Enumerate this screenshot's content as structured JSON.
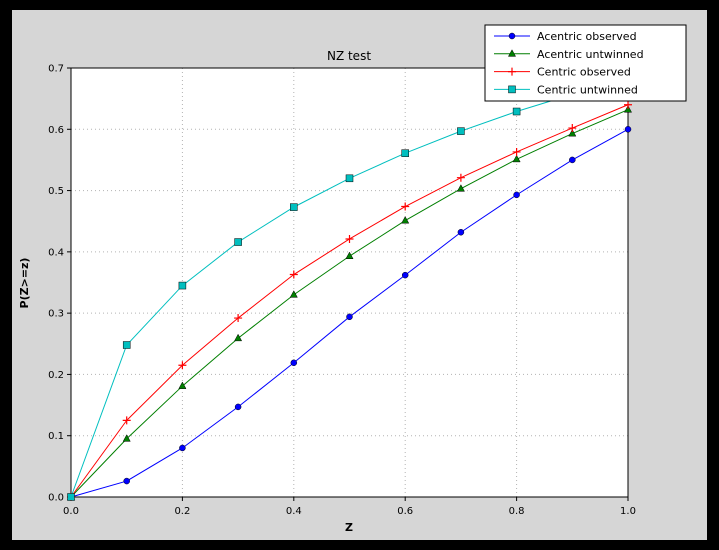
{
  "window": {
    "background": "#000000"
  },
  "figure": {
    "facecolor": "#d6d6d6",
    "plot_facecolor": "#ffffff",
    "border_color": "#000000",
    "grid_color": "#b3b3b3",
    "tick_color": "#000000",
    "text_color": "#000000"
  },
  "chart_data": {
    "type": "line",
    "title": "NZ test",
    "xlabel": "Z",
    "ylabel": "P(Z>=z)",
    "xlim": [
      0.0,
      1.0
    ],
    "ylim": [
      0.0,
      0.7
    ],
    "xticks": [
      0.0,
      0.2,
      0.4,
      0.6,
      0.8,
      1.0
    ],
    "yticks": [
      0.0,
      0.1,
      0.2,
      0.3,
      0.4,
      0.5,
      0.6,
      0.7
    ],
    "grid": true,
    "grid_style": "dotted",
    "legend": {
      "position": "upper right",
      "entries": [
        "Acentric observed",
        "Acentric untwinned",
        "Centric observed",
        "Centric untwinned"
      ]
    },
    "x": [
      0.0,
      0.1,
      0.2,
      0.3,
      0.4,
      0.5,
      0.6,
      0.7,
      0.8,
      0.9,
      1.0
    ],
    "series": [
      {
        "name": "Acentric observed",
        "color": "#0000ff",
        "marker": "circle",
        "values": [
          0.0,
          0.026,
          0.08,
          0.147,
          0.219,
          0.294,
          0.362,
          0.432,
          0.493,
          0.55,
          0.6
        ]
      },
      {
        "name": "Acentric untwinned",
        "color": "#007f00",
        "marker": "triangle",
        "values": [
          0.0,
          0.095,
          0.181,
          0.259,
          0.33,
          0.393,
          0.451,
          0.503,
          0.551,
          0.593,
          0.632
        ]
      },
      {
        "name": "Centric observed",
        "color": "#ff0000",
        "marker": "plus",
        "values": [
          0.0,
          0.125,
          0.215,
          0.292,
          0.363,
          0.421,
          0.474,
          0.521,
          0.563,
          0.602,
          0.64
        ]
      },
      {
        "name": "Centric untwinned",
        "color": "#00bfbf",
        "marker": "square",
        "values": [
          0.0,
          0.248,
          0.345,
          0.416,
          0.473,
          0.52,
          0.561,
          0.597,
          0.629,
          0.657,
          0.683
        ]
      }
    ]
  }
}
